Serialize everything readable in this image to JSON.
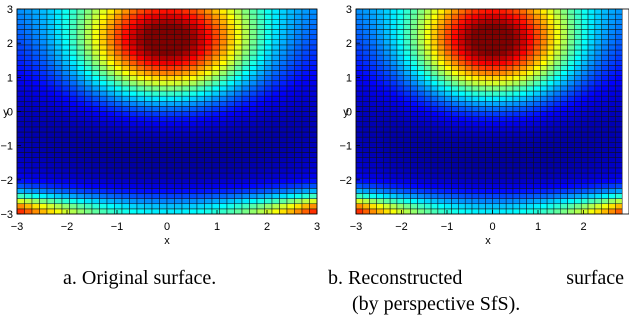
{
  "chart_data": [
    {
      "type": "heatmap",
      "variant": "surface mesh viewed from top",
      "colormap": "jet",
      "title": "",
      "xlabel": "x",
      "ylabel": "y",
      "xlim": [
        -3,
        3
      ],
      "ylim": [
        -3,
        3
      ],
      "xticks": [
        "−3",
        "−2",
        "−1",
        "0",
        "1",
        "2",
        "3"
      ],
      "yticks": [
        "−3",
        "−2",
        "−1",
        "0",
        "1",
        "2",
        "3"
      ],
      "mesh_step": 0.15,
      "peak": {
        "x": 0,
        "y": 2
      },
      "trough_band_y": -0.3,
      "high_edge": "bottom corners"
    },
    {
      "type": "heatmap",
      "variant": "surface mesh viewed from top",
      "colormap": "jet",
      "title": "",
      "xlabel": "x",
      "ylabel": "y",
      "xlim": [
        -3,
        2.8
      ],
      "ylim": [
        -3,
        3
      ],
      "xticks": [
        "−3",
        "−2",
        "−1",
        "0",
        "1",
        "2"
      ],
      "yticks": [
        "−2",
        "−1",
        "0",
        "1",
        "2",
        "3"
      ],
      "mesh_step": 0.15,
      "peak": {
        "x": 0,
        "y": 2
      },
      "trough_band_y": -0.3,
      "high_edge": "bottom corners"
    }
  ],
  "captions": {
    "a": "a. Original surface.",
    "b_word1": "b. Reconstructed",
    "b_word2": "surface",
    "b_line2": "(by perspective SfS)."
  }
}
